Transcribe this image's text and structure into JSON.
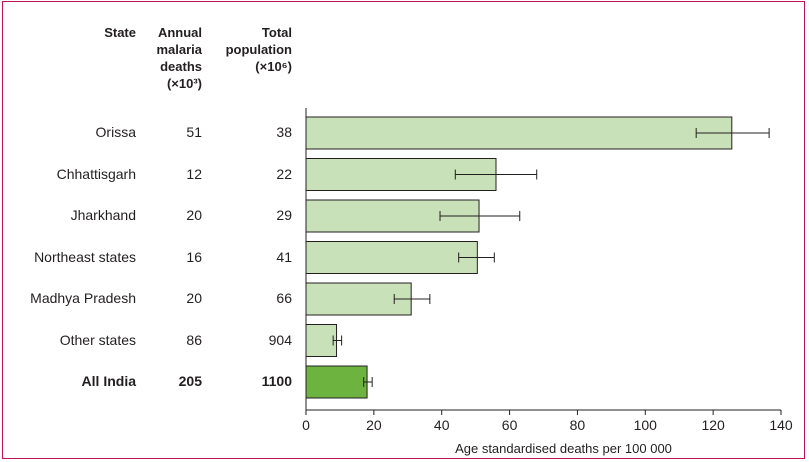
{
  "table": {
    "headers": {
      "state": "State",
      "deaths": [
        "Annual",
        "malaria",
        "deaths",
        "(×10³)"
      ],
      "population": [
        "Total",
        "population",
        "(×10⁶)"
      ]
    }
  },
  "chart_data": {
    "type": "bar",
    "orientation": "horizontal",
    "categories": [
      "Orissa",
      "Chhattisgarh",
      "Jharkhand",
      "Northeast states",
      "Madhya Pradesh",
      "Other states",
      "All India"
    ],
    "annual_deaths": [
      "51",
      "12",
      "20",
      "16",
      "20",
      "86",
      "205"
    ],
    "total_population": [
      "38",
      "22",
      "29",
      "41",
      "66",
      "904",
      "1100"
    ],
    "values": [
      125.5,
      56,
      51,
      50.5,
      31,
      9,
      18
    ],
    "error_low": [
      115,
      44,
      39.5,
      45,
      26,
      8,
      17
    ],
    "error_high": [
      136.5,
      68,
      63,
      55.5,
      36.5,
      10.5,
      19.5
    ],
    "highlight": [
      false,
      false,
      false,
      false,
      false,
      false,
      true
    ],
    "xlabel": "Age standardised deaths per 100 000",
    "xlim": [
      0,
      140
    ],
    "xticks": [
      0,
      20,
      40,
      60,
      80,
      100,
      120,
      140
    ],
    "grid": false,
    "colors": {
      "bar": "#c8e1b8",
      "highlight": "#6db33f",
      "stroke": "#231f20",
      "frame": "#c0135c"
    }
  }
}
